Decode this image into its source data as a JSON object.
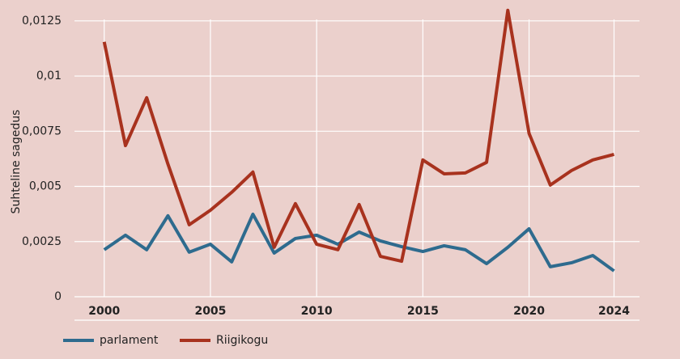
{
  "chart_data": {
    "type": "line",
    "y_label": "Suhteline sagedus",
    "x": [
      2000,
      2001,
      2002,
      2003,
      2004,
      2005,
      2006,
      2007,
      2008,
      2009,
      2010,
      2011,
      2012,
      2013,
      2014,
      2015,
      2016,
      2017,
      2018,
      2019,
      2020,
      2021,
      2022,
      2023,
      2024
    ],
    "series": [
      {
        "name": "parlament",
        "color": "#2e6b8e",
        "values": [
          0.00213,
          0.00279,
          0.00213,
          0.00367,
          0.00202,
          0.00238,
          0.00158,
          0.00374,
          0.00198,
          0.00264,
          0.00279,
          0.00238,
          0.00293,
          0.00253,
          0.00227,
          0.00205,
          0.00231,
          0.00213,
          0.0015,
          0.00224,
          0.00308,
          0.00136,
          0.00154,
          0.00187,
          0.00117
        ]
      },
      {
        "name": "Riigikogu",
        "color": "#a8321e",
        "values": [
          0.01155,
          0.00685,
          0.00902,
          0.00601,
          0.00326,
          0.00392,
          0.00473,
          0.00565,
          0.00224,
          0.00422,
          0.00238,
          0.00213,
          0.00418,
          0.00183,
          0.00161,
          0.0062,
          0.00557,
          0.00561,
          0.00609,
          0.01298,
          0.0074,
          0.00506,
          0.00572,
          0.0062,
          0.00645
        ]
      }
    ],
    "xlim": [
      1998.6,
      2025.2
    ],
    "xticks": [
      2000,
      2005,
      2010,
      2015,
      2020,
      2024
    ],
    "ylim": [
      0,
      0.0133
    ],
    "yticks": [
      0,
      {
        "value": 0.0025,
        "label": "0,0025"
      },
      {
        "value": 0.005,
        "label": "0,005"
      },
      {
        "value": 0.0075,
        "label": "0,0075"
      },
      {
        "value": 0.01,
        "label": "0,01"
      },
      {
        "value": 0.0125,
        "label": "0,0125"
      }
    ],
    "grid": true,
    "legend": "bottom-left"
  }
}
